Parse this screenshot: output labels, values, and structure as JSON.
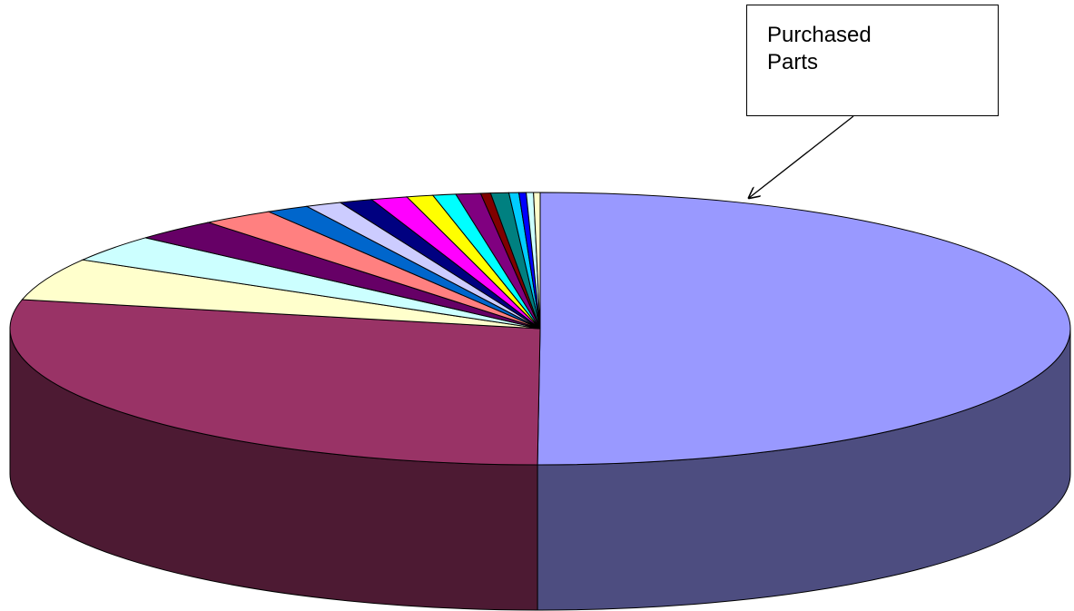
{
  "chart_data": {
    "type": "pie3d",
    "annotation": "Purchased Parts",
    "annotation_target": 0,
    "values": [
      50,
      28.3,
      5,
      3.2,
      2.6,
      2.2,
      1.3,
      1.1,
      1,
      1.1,
      0.8,
      0.7,
      0.75,
      0.3,
      0.55,
      0.3,
      0.22,
      0.22,
      0.2
    ],
    "colors": [
      "#9999ff",
      "#993366",
      "#ffffcc",
      "#ccffff",
      "#660066",
      "#ff8080",
      "#0066cc",
      "#ccccff",
      "#000080",
      "#ff00ff",
      "#ffff00",
      "#00ffff",
      "#800080",
      "#800000",
      "#008080",
      "#00ccff",
      "#0000ff",
      "#ccffff",
      "#ffffcc"
    ]
  }
}
